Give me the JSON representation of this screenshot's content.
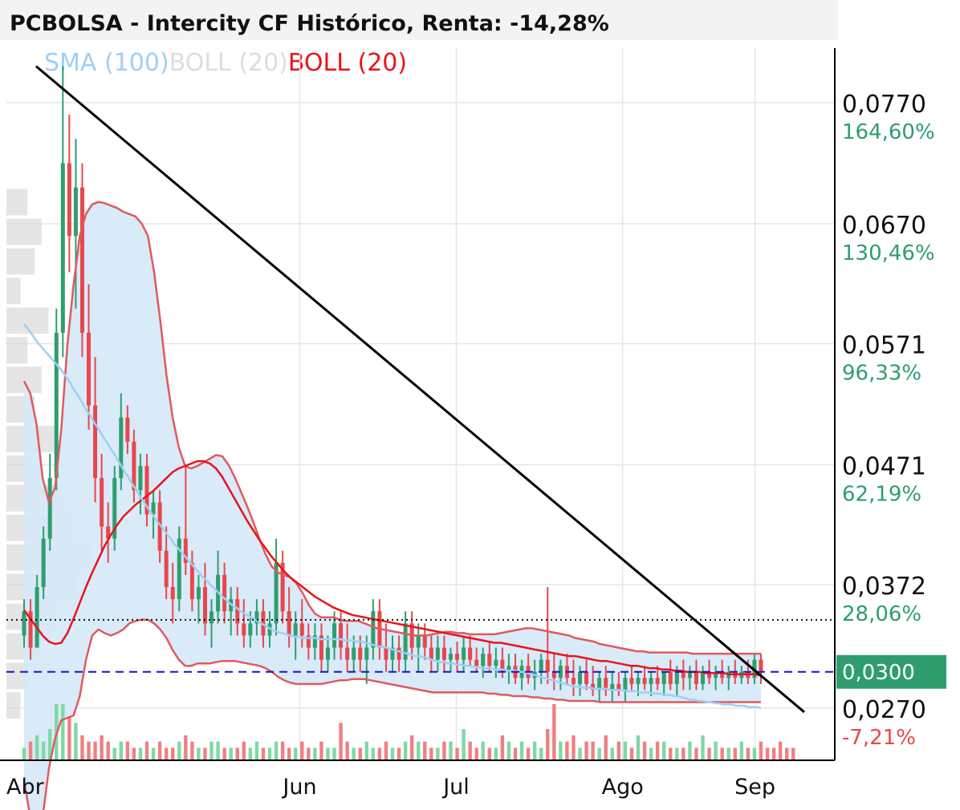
{
  "chart_data": {
    "type": "candlestick",
    "title": "PCBOLSA - Intercity CF Histórico, Renta: -14,28%",
    "legend": [
      {
        "label": "SMA (100)",
        "color": "#9ed0f5"
      },
      {
        "label": "BOLL (20)",
        "color": "#dddddd"
      },
      {
        "label": "BOLL (20)",
        "color": "#e8141a"
      }
    ],
    "x_tick_labels": [
      "Abr",
      "Jun",
      "Jul",
      "Ago",
      "Sep"
    ],
    "y_ticks": [
      {
        "value": 0.077,
        "label": "0,0770",
        "pct": "164,60%",
        "pct_color": "#2e9e6e"
      },
      {
        "value": 0.067,
        "label": "0,0670",
        "pct": "130,46%",
        "pct_color": "#2e9e6e"
      },
      {
        "value": 0.0571,
        "label": "0,0571",
        "pct": "96,33%",
        "pct_color": "#2e9e6e"
      },
      {
        "value": 0.0471,
        "label": "0,0471",
        "pct": "62,19%",
        "pct_color": "#2e9e6e"
      },
      {
        "value": 0.0372,
        "label": "0,0372",
        "pct": "28,06%",
        "pct_color": "#2e9e6e"
      },
      {
        "value": 0.027,
        "label": "0,0270",
        "pct": "-7,21%",
        "pct_color": "#e8474b"
      }
    ],
    "ylim": [
      0.0227,
      0.0815
    ],
    "current_price": {
      "value": 0.03,
      "label": "0,0300",
      "color": "#2e9e6e"
    },
    "reference_line": 0.0343,
    "trendline": {
      "start": [
        "Abr",
        0.08
      ],
      "end": [
        "Sep",
        0.028
      ]
    },
    "sma100": [
      0.0542,
      0.0538,
      0.0533,
      0.0528,
      0.0524,
      0.052,
      0.0516,
      0.0512,
      0.0508,
      0.0504,
      0.0499,
      0.0494,
      0.0488,
      0.0483,
      0.0477,
      0.0471,
      0.0466,
      0.046,
      0.0455,
      0.0449,
      0.0444,
      0.0438,
      0.0433,
      0.0427,
      0.0421,
      0.0416,
      0.041,
      0.0405,
      0.0399,
      0.0394,
      0.0389,
      0.0384,
      0.0379,
      0.0375,
      0.037,
      0.0366,
      0.0361,
      0.0357,
      0.0353,
      0.0349,
      0.0345,
      0.0341,
      0.0337,
      0.0333,
      0.033,
      0.0326,
      0.0323,
      0.0319,
      0.0316,
      0.0313,
      0.031,
      0.0308,
      0.0305,
      0.0303,
      0.0301,
      0.0299,
      0.0297,
      0.0295,
      0.0293,
      0.0291,
      0.0289,
      0.0288,
      0.0287,
      0.0286,
      0.0285,
      0.0284,
      0.0284,
      0.0283,
      0.0283,
      0.0283,
      0.0283,
      0.0282,
      0.0282,
      0.0282,
      0.0282,
      0.0282,
      0.0282,
      0.0281,
      0.0281,
      0.0281,
      0.028,
      0.028,
      0.0279,
      0.0278,
      0.0277,
      0.0276,
      0.0276,
      0.0275,
      0.0274,
      0.0273,
      0.0272,
      0.0271,
      0.027,
      0.0269,
      0.0268,
      0.0268,
      0.0267,
      0.0266,
      0.0265,
      0.0264,
      0.0263,
      0.0263,
      0.0262,
      0.0262,
      0.0261,
      0.0261,
      0.026,
      0.026,
      0.0259,
      0.0259,
      0.0258,
      0.0258,
      0.0258,
      0.0257,
      0.0257,
      0.0257,
      0.0256,
      0.0256,
      0.0256,
      0.0255,
      0.0255,
      0.0254,
      0.0253,
      0.0252,
      0.0251,
      0.025,
      0.0249,
      0.0248,
      0.0247,
      0.0246,
      0.0245,
      0.0244,
      0.0243,
      0.0243,
      0.0242,
      0.0242,
      0.0242,
      0.0241,
      0.0241,
      0.0241,
      0.0241,
      0.024,
      0.024,
      0.024,
      0.024,
      0.0239,
      0.0239,
      0.0239,
      0.0238,
      0.0238,
      0.0238,
      0.0237,
      0.0237,
      0.0237,
      0.0236,
      0.0236,
      0.0235,
      0.0235,
      0.0234,
      0.0233,
      0.0232,
      0.0232,
      0.0231,
      0.0231,
      0.023,
      0.023,
      0.0229,
      0.0229,
      0.0228,
      0.0228,
      0.0228,
      0.0227,
      0.0227,
      0.0227,
      0.0226,
      0.0226,
      0.0226,
      0.0225
    ],
    "boll_mid": [
      0.0351,
      0.0344,
      0.0337,
      0.033,
      0.0325,
      0.0323,
      0.0324,
      0.0332,
      0.0344,
      0.0357,
      0.037,
      0.0382,
      0.0393,
      0.0404,
      0.0413,
      0.0421,
      0.0428,
      0.0433,
      0.0438,
      0.0442,
      0.0446,
      0.045,
      0.0455,
      0.046,
      0.0465,
      0.0468,
      0.047,
      0.0472,
      0.0474,
      0.0474,
      0.0472,
      0.0468,
      0.0461,
      0.0452,
      0.0443,
      0.0434,
      0.0425,
      0.0417,
      0.0409,
      0.0402,
      0.0395,
      0.0389,
      0.0383,
      0.0378,
      0.0374,
      0.037,
      0.0366,
      0.0362,
      0.0359,
      0.0356,
      0.0353,
      0.0351,
      0.0349,
      0.0347,
      0.0346,
      0.0345,
      0.0344,
      0.0343,
      0.0342,
      0.0341,
      0.034,
      0.0339,
      0.0338,
      0.0337,
      0.0336,
      0.0335,
      0.0334,
      0.0333,
      0.0332,
      0.0331,
      0.033,
      0.0329,
      0.0328,
      0.0327,
      0.0326,
      0.0325,
      0.0324,
      0.0324,
      0.0323,
      0.0322,
      0.0321,
      0.032,
      0.0319,
      0.0318,
      0.0317,
      0.0316,
      0.0315,
      0.0314,
      0.0313,
      0.0313,
      0.0312,
      0.0311,
      0.031,
      0.0309,
      0.0309,
      0.0308,
      0.0307,
      0.0306,
      0.0305,
      0.0305,
      0.0304,
      0.0303,
      0.0303,
      0.0302,
      0.0302,
      0.0301,
      0.0301,
      0.03,
      0.03,
      0.03,
      0.0299,
      0.0299,
      0.0299,
      0.0299,
      0.0298,
      0.0298,
      0.0298,
      0.0298,
      0.0298,
      0.0297
    ],
    "boll_upper": [
      0.054,
      0.053,
      0.0505,
      0.046,
      0.044,
      0.0452,
      0.05,
      0.057,
      0.062,
      0.066,
      0.0678,
      0.0686,
      0.0688,
      0.0687,
      0.0685,
      0.0683,
      0.068,
      0.0678,
      0.0676,
      0.067,
      0.066,
      0.063,
      0.059,
      0.0545,
      0.051,
      0.0485,
      0.047,
      0.0468,
      0.047,
      0.0473,
      0.0476,
      0.0479,
      0.0478,
      0.0471,
      0.0461,
      0.0449,
      0.0437,
      0.0424,
      0.041,
      0.0397,
      0.0387,
      0.0382,
      0.038,
      0.0378,
      0.0373,
      0.0365,
      0.0355,
      0.0348,
      0.0345,
      0.0345,
      0.0345,
      0.0343,
      0.0342,
      0.0342,
      0.0342,
      0.034,
      0.0338,
      0.0336,
      0.0335,
      0.0334,
      0.0333,
      0.0332,
      0.0331,
      0.033,
      0.033,
      0.033,
      0.0331,
      0.0332,
      0.0333,
      0.0333,
      0.0332,
      0.0332,
      0.0331,
      0.0331,
      0.0331,
      0.0331,
      0.0331,
      0.0332,
      0.0333,
      0.0334,
      0.0335,
      0.0336,
      0.0336,
      0.0335,
      0.0334,
      0.0333,
      0.0332,
      0.0331,
      0.033,
      0.0328,
      0.0327,
      0.0326,
      0.0325,
      0.0323,
      0.0322,
      0.0321,
      0.032,
      0.0319,
      0.0318,
      0.0317,
      0.0317,
      0.0316,
      0.0316,
      0.0316,
      0.0316,
      0.0316,
      0.0316,
      0.0316,
      0.0315,
      0.0315,
      0.0315,
      0.0315,
      0.0315,
      0.0315,
      0.0315,
      0.0315,
      0.0315,
      0.0315,
      0.0315,
      0.0315
    ],
    "boll_lower": [
      0.021,
      0.018,
      0.016,
      0.018,
      0.022,
      0.0245,
      0.026,
      0.0262,
      0.0264,
      0.028,
      0.031,
      0.033,
      0.0335,
      0.0332,
      0.033,
      0.0332,
      0.0335,
      0.034,
      0.0342,
      0.0343,
      0.0343,
      0.034,
      0.0335,
      0.0328,
      0.0318,
      0.031,
      0.0305,
      0.0305,
      0.0307,
      0.0307,
      0.0307,
      0.0308,
      0.0309,
      0.0309,
      0.0309,
      0.0308,
      0.0307,
      0.0306,
      0.0305,
      0.0303,
      0.03,
      0.0296,
      0.0293,
      0.0291,
      0.029,
      0.029,
      0.029,
      0.029,
      0.029,
      0.0291,
      0.0292,
      0.0293,
      0.0293,
      0.0294,
      0.0294,
      0.0294,
      0.0293,
      0.0292,
      0.0291,
      0.029,
      0.0289,
      0.0288,
      0.0287,
      0.0286,
      0.0285,
      0.0284,
      0.0283,
      0.0283,
      0.0283,
      0.0283,
      0.0283,
      0.0283,
      0.0283,
      0.0283,
      0.0283,
      0.0282,
      0.0282,
      0.0281,
      0.0281,
      0.028,
      0.028,
      0.028,
      0.0279,
      0.0279,
      0.0278,
      0.0278,
      0.0277,
      0.0277,
      0.0276,
      0.0276,
      0.0276,
      0.0276,
      0.0276,
      0.0275,
      0.0275,
      0.0275,
      0.0275,
      0.0275,
      0.0275,
      0.0275,
      0.0275,
      0.0275,
      0.0275,
      0.0275,
      0.0275,
      0.0275,
      0.0275,
      0.0275,
      0.0275,
      0.0275,
      0.0275,
      0.0275,
      0.0275,
      0.0275,
      0.0275,
      0.0275,
      0.0275,
      0.0275,
      0.0275,
      0.0275
    ],
    "candles": [
      [
        0.033,
        0.036,
        0.032,
        0.035
      ],
      [
        0.035,
        0.036,
        0.031,
        0.032
      ],
      [
        0.032,
        0.038,
        0.032,
        0.037
      ],
      [
        0.037,
        0.042,
        0.036,
        0.041
      ],
      [
        0.041,
        0.048,
        0.04,
        0.046
      ],
      [
        0.046,
        0.06,
        0.045,
        0.058
      ],
      [
        0.058,
        0.08,
        0.056,
        0.072
      ],
      [
        0.072,
        0.076,
        0.063,
        0.066
      ],
      [
        0.066,
        0.074,
        0.06,
        0.07
      ],
      [
        0.07,
        0.072,
        0.056,
        0.058
      ],
      [
        0.058,
        0.062,
        0.05,
        0.052
      ],
      [
        0.052,
        0.056,
        0.044,
        0.046
      ],
      [
        0.046,
        0.048,
        0.04,
        0.042
      ],
      [
        0.042,
        0.044,
        0.039,
        0.041
      ],
      [
        0.041,
        0.047,
        0.04,
        0.046
      ],
      [
        0.046,
        0.053,
        0.045,
        0.051
      ],
      [
        0.051,
        0.052,
        0.048,
        0.049
      ],
      [
        0.049,
        0.05,
        0.044,
        0.045
      ],
      [
        0.045,
        0.048,
        0.043,
        0.047
      ],
      [
        0.047,
        0.048,
        0.042,
        0.043
      ],
      [
        0.043,
        0.045,
        0.041,
        0.044
      ],
      [
        0.044,
        0.045,
        0.039,
        0.04
      ],
      [
        0.04,
        0.042,
        0.036,
        0.037
      ],
      [
        0.037,
        0.039,
        0.034,
        0.036
      ],
      [
        0.036,
        0.042,
        0.035,
        0.041
      ],
      [
        0.041,
        0.047,
        0.038,
        0.039
      ],
      [
        0.039,
        0.04,
        0.035,
        0.036
      ],
      [
        0.036,
        0.038,
        0.034,
        0.037
      ],
      [
        0.037,
        0.039,
        0.033,
        0.034
      ],
      [
        0.034,
        0.036,
        0.032,
        0.035
      ],
      [
        0.035,
        0.04,
        0.034,
        0.038
      ],
      [
        0.038,
        0.039,
        0.034,
        0.035
      ],
      [
        0.035,
        0.037,
        0.033,
        0.036
      ],
      [
        0.036,
        0.037,
        0.033,
        0.034
      ],
      [
        0.034,
        0.036,
        0.032,
        0.033
      ],
      [
        0.033,
        0.035,
        0.032,
        0.034
      ],
      [
        0.034,
        0.036,
        0.033,
        0.035
      ],
      [
        0.035,
        0.036,
        0.032,
        0.033
      ],
      [
        0.033,
        0.035,
        0.032,
        0.034
      ],
      [
        0.034,
        0.041,
        0.033,
        0.039
      ],
      [
        0.039,
        0.04,
        0.034,
        0.035
      ],
      [
        0.035,
        0.037,
        0.032,
        0.033
      ],
      [
        0.033,
        0.035,
        0.031,
        0.034
      ],
      [
        0.034,
        0.036,
        0.032,
        0.033
      ],
      [
        0.033,
        0.034,
        0.031,
        0.032
      ],
      [
        0.032,
        0.034,
        0.031,
        0.033
      ],
      [
        0.033,
        0.034,
        0.03,
        0.031
      ],
      [
        0.031,
        0.033,
        0.03,
        0.032
      ],
      [
        0.032,
        0.035,
        0.031,
        0.034
      ],
      [
        0.034,
        0.035,
        0.031,
        0.032
      ],
      [
        0.032,
        0.034,
        0.03,
        0.031
      ],
      [
        0.031,
        0.033,
        0.03,
        0.032
      ],
      [
        0.032,
        0.033,
        0.03,
        0.031
      ],
      [
        0.031,
        0.033,
        0.029,
        0.032
      ],
      [
        0.032,
        0.036,
        0.031,
        0.035
      ],
      [
        0.035,
        0.036,
        0.031,
        0.032
      ],
      [
        0.032,
        0.034,
        0.03,
        0.031
      ],
      [
        0.031,
        0.033,
        0.03,
        0.032
      ],
      [
        0.032,
        0.033,
        0.03,
        0.031
      ],
      [
        0.031,
        0.035,
        0.03,
        0.034
      ],
      [
        0.034,
        0.035,
        0.031,
        0.032
      ],
      [
        0.032,
        0.034,
        0.03,
        0.033
      ],
      [
        0.033,
        0.034,
        0.031,
        0.032
      ],
      [
        0.032,
        0.033,
        0.03,
        0.031
      ],
      [
        0.031,
        0.033,
        0.03,
        0.032
      ],
      [
        0.032,
        0.033,
        0.03,
        0.031
      ],
      [
        0.031,
        0.032,
        0.03,
        0.0315
      ],
      [
        0.0315,
        0.0325,
        0.03,
        0.031
      ],
      [
        0.031,
        0.033,
        0.03,
        0.032
      ],
      [
        0.032,
        0.033,
        0.0305,
        0.031
      ],
      [
        0.031,
        0.032,
        0.03,
        0.0305
      ],
      [
        0.0305,
        0.032,
        0.0295,
        0.0315
      ],
      [
        0.0315,
        0.0325,
        0.03,
        0.0305
      ],
      [
        0.0305,
        0.032,
        0.0295,
        0.031
      ],
      [
        0.031,
        0.032,
        0.0295,
        0.03
      ],
      [
        0.03,
        0.0315,
        0.029,
        0.0305
      ],
      [
        0.0305,
        0.0315,
        0.029,
        0.0295
      ],
      [
        0.0295,
        0.031,
        0.0285,
        0.0305
      ],
      [
        0.0305,
        0.0315,
        0.029,
        0.0295
      ],
      [
        0.0295,
        0.031,
        0.0285,
        0.03
      ],
      [
        0.03,
        0.0315,
        0.029,
        0.031
      ],
      [
        0.031,
        0.037,
        0.029,
        0.03
      ],
      [
        0.03,
        0.0315,
        0.0285,
        0.0295
      ],
      [
        0.0295,
        0.031,
        0.0285,
        0.0305
      ],
      [
        0.0305,
        0.0315,
        0.029,
        0.0295
      ],
      [
        0.0295,
        0.031,
        0.028,
        0.029
      ],
      [
        0.029,
        0.0305,
        0.028,
        0.03
      ],
      [
        0.03,
        0.031,
        0.0285,
        0.029
      ],
      [
        0.029,
        0.0305,
        0.028,
        0.0285
      ],
      [
        0.0285,
        0.03,
        0.0275,
        0.0295
      ],
      [
        0.0295,
        0.0305,
        0.028,
        0.0285
      ],
      [
        0.0285,
        0.03,
        0.0275,
        0.029
      ],
      [
        0.029,
        0.03,
        0.028,
        0.0285
      ],
      [
        0.0285,
        0.03,
        0.0275,
        0.0295
      ],
      [
        0.0295,
        0.0305,
        0.0285,
        0.029
      ],
      [
        0.029,
        0.03,
        0.028,
        0.0295
      ],
      [
        0.0295,
        0.0305,
        0.0285,
        0.029
      ],
      [
        0.029,
        0.03,
        0.028,
        0.0295
      ],
      [
        0.0295,
        0.0305,
        0.0285,
        0.029
      ],
      [
        0.029,
        0.03,
        0.028,
        0.03
      ],
      [
        0.03,
        0.031,
        0.0285,
        0.029
      ],
      [
        0.029,
        0.0305,
        0.028,
        0.03
      ],
      [
        0.03,
        0.031,
        0.0285,
        0.0295
      ],
      [
        0.0295,
        0.0305,
        0.0285,
        0.03
      ],
      [
        0.03,
        0.031,
        0.0285,
        0.029
      ],
      [
        0.029,
        0.0305,
        0.0285,
        0.03
      ],
      [
        0.03,
        0.031,
        0.029,
        0.0295
      ],
      [
        0.0295,
        0.0305,
        0.0285,
        0.03
      ],
      [
        0.03,
        0.031,
        0.029,
        0.0295
      ],
      [
        0.0295,
        0.0305,
        0.0285,
        0.03
      ],
      [
        0.03,
        0.031,
        0.029,
        0.0295
      ],
      [
        0.0295,
        0.0305,
        0.029,
        0.03
      ],
      [
        0.03,
        0.031,
        0.029,
        0.0295
      ],
      [
        0.0295,
        0.0315,
        0.029,
        0.031
      ],
      [
        0.031,
        0.0315,
        0.029,
        0.03
      ]
    ],
    "volume": [
      2,
      3,
      4,
      3,
      5,
      9,
      9,
      7,
      6,
      4,
      3,
      3,
      4,
      3,
      2,
      3,
      3,
      2,
      2,
      3,
      2,
      3,
      2,
      2,
      3,
      4,
      3,
      2,
      2,
      3,
      3,
      2,
      2,
      2,
      3,
      2,
      3,
      2,
      2,
      3,
      3,
      2,
      2,
      3,
      2,
      2,
      3,
      2,
      2,
      6,
      3,
      2,
      2,
      3,
      2,
      2,
      3,
      2,
      2,
      3,
      4,
      3,
      3,
      2,
      2,
      3,
      3,
      2,
      5,
      3,
      2,
      3,
      2,
      2,
      4,
      3,
      2,
      3,
      2,
      3,
      2,
      5,
      9,
      3,
      3,
      4,
      2,
      3,
      3,
      2,
      4,
      2,
      3,
      3,
      2,
      4,
      3,
      2,
      3,
      3,
      2,
      2,
      2,
      3,
      2,
      4,
      2,
      3,
      2,
      2,
      2,
      3,
      2,
      2,
      3,
      2,
      2,
      3,
      2,
      2
    ],
    "volume_profile": [
      3,
      5,
      4,
      2,
      6,
      3,
      5,
      4,
      7,
      5,
      8,
      9,
      12,
      10,
      7,
      5,
      3,
      2
    ]
  }
}
